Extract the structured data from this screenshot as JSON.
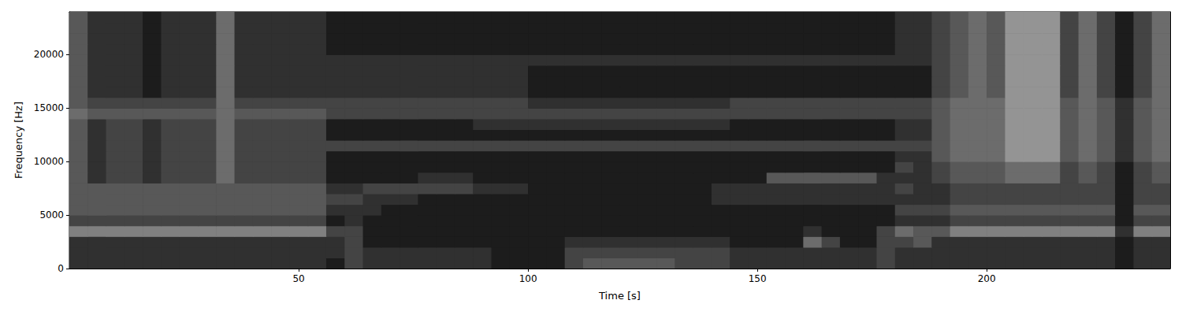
{
  "chart_data": {
    "type": "heatmap",
    "x_label": "Time [s]",
    "y_label": "Frequency [Hz]",
    "xlim": [
      0,
      240
    ],
    "ylim": [
      0,
      24000
    ],
    "xticks": [
      50,
      100,
      150,
      200
    ],
    "yticks": [
      0,
      5000,
      10000,
      15000,
      20000
    ],
    "grid": false,
    "zlim": [
      0,
      10
    ],
    "x": [
      0,
      4,
      8,
      12,
      16,
      20,
      24,
      28,
      32,
      36,
      40,
      44,
      48,
      52,
      56,
      60,
      64,
      68,
      72,
      76,
      80,
      84,
      88,
      92,
      96,
      100,
      104,
      108,
      112,
      116,
      120,
      124,
      128,
      132,
      136,
      140,
      144,
      148,
      152,
      156,
      160,
      164,
      168,
      172,
      176,
      180,
      184,
      188,
      192,
      196,
      200,
      204,
      208,
      212,
      216,
      220,
      224,
      228,
      232,
      236,
      240
    ],
    "y": [
      0,
      1000,
      2000,
      3000,
      4000,
      5000,
      6000,
      7000,
      8000,
      9000,
      10000,
      11000,
      12000,
      13000,
      14000,
      15000,
      16000,
      17000,
      18000,
      19000,
      20000,
      21000,
      22000,
      23000,
      24000
    ],
    "z": [
      [
        2,
        2,
        2,
        2,
        2,
        2,
        2,
        2,
        2,
        2,
        2,
        2,
        2,
        2,
        1,
        3,
        2,
        2,
        2,
        2,
        2,
        2,
        2,
        1,
        1,
        1,
        1,
        3,
        4,
        4,
        4,
        4,
        4,
        3,
        3,
        3,
        2,
        2,
        2,
        2,
        2,
        2,
        2,
        2,
        3,
        2,
        2,
        2,
        2,
        2,
        2,
        2,
        2,
        2,
        2,
        2,
        2,
        1,
        2,
        2
      ],
      [
        2,
        2,
        2,
        2,
        2,
        2,
        2,
        2,
        2,
        2,
        2,
        2,
        2,
        2,
        2,
        3,
        2,
        2,
        2,
        2,
        2,
        2,
        2,
        1,
        1,
        1,
        1,
        3,
        3,
        3,
        3,
        3,
        3,
        3,
        3,
        3,
        2,
        2,
        2,
        2,
        2,
        2,
        2,
        2,
        3,
        2,
        2,
        2,
        2,
        2,
        2,
        2,
        2,
        2,
        2,
        2,
        2,
        1,
        2,
        2
      ],
      [
        2,
        2,
        2,
        2,
        2,
        2,
        2,
        2,
        2,
        2,
        2,
        2,
        2,
        2,
        2,
        3,
        1,
        1,
        1,
        1,
        1,
        1,
        1,
        1,
        1,
        1,
        1,
        2,
        2,
        2,
        2,
        2,
        2,
        2,
        2,
        2,
        1,
        1,
        1,
        1,
        5,
        3,
        1,
        1,
        3,
        3,
        4,
        2,
        2,
        2,
        2,
        2,
        2,
        2,
        2,
        2,
        2,
        1,
        2,
        2
      ],
      [
        6,
        6,
        6,
        6,
        6,
        6,
        6,
        6,
        6,
        6,
        6,
        6,
        6,
        6,
        3,
        3,
        1,
        1,
        1,
        1,
        1,
        1,
        1,
        1,
        1,
        1,
        1,
        1,
        1,
        1,
        1,
        1,
        1,
        1,
        1,
        1,
        1,
        1,
        1,
        1,
        2,
        1,
        1,
        1,
        3,
        5,
        4,
        4,
        6,
        6,
        6,
        6,
        6,
        6,
        6,
        6,
        6,
        2,
        6,
        6
      ],
      [
        3,
        3,
        3,
        3,
        3,
        3,
        3,
        3,
        3,
        3,
        3,
        3,
        3,
        3,
        1,
        2,
        1,
        1,
        1,
        1,
        1,
        1,
        1,
        1,
        1,
        1,
        1,
        1,
        1,
        1,
        1,
        1,
        1,
        1,
        1,
        1,
        1,
        1,
        1,
        1,
        1,
        1,
        1,
        1,
        1,
        2,
        2,
        2,
        3,
        3,
        3,
        3,
        3,
        3,
        3,
        3,
        3,
        1,
        3,
        3
      ],
      [
        4,
        4,
        4,
        4,
        4,
        4,
        4,
        4,
        4,
        4,
        4,
        4,
        4,
        4,
        2,
        2,
        2,
        1,
        1,
        1,
        1,
        1,
        1,
        1,
        1,
        1,
        1,
        1,
        1,
        1,
        1,
        1,
        1,
        1,
        1,
        1,
        1,
        1,
        1,
        1,
        1,
        1,
        1,
        1,
        1,
        3,
        3,
        3,
        4,
        4,
        4,
        4,
        4,
        4,
        4,
        4,
        4,
        1,
        4,
        4
      ],
      [
        4,
        4,
        4,
        4,
        4,
        4,
        4,
        4,
        4,
        4,
        4,
        4,
        4,
        4,
        3,
        3,
        2,
        2,
        2,
        1,
        1,
        1,
        1,
        1,
        1,
        1,
        1,
        1,
        1,
        1,
        1,
        1,
        1,
        1,
        1,
        2,
        2,
        2,
        2,
        2,
        2,
        2,
        2,
        2,
        2,
        2,
        2,
        2,
        3,
        3,
        3,
        3,
        3,
        3,
        3,
        3,
        3,
        1,
        3,
        3
      ],
      [
        4,
        4,
        4,
        4,
        4,
        4,
        4,
        4,
        4,
        4,
        4,
        4,
        4,
        4,
        2,
        2,
        3,
        3,
        3,
        3,
        3,
        3,
        2,
        2,
        2,
        1,
        1,
        1,
        1,
        1,
        1,
        1,
        1,
        1,
        1,
        2,
        2,
        2,
        2,
        2,
        2,
        2,
        2,
        2,
        2,
        3,
        2,
        2,
        3,
        3,
        3,
        3,
        3,
        3,
        3,
        3,
        3,
        1,
        3,
        3
      ],
      [
        4,
        2,
        3,
        3,
        2,
        3,
        3,
        3,
        5,
        3,
        3,
        3,
        3,
        3,
        1,
        1,
        1,
        1,
        1,
        2,
        2,
        2,
        1,
        1,
        1,
        1,
        1,
        1,
        1,
        1,
        1,
        1,
        1,
        1,
        1,
        1,
        1,
        1,
        4,
        4,
        4,
        4,
        4,
        4,
        2,
        2,
        2,
        3,
        4,
        4,
        4,
        5,
        5,
        5,
        3,
        4,
        3,
        1,
        3,
        4
      ],
      [
        4,
        2,
        3,
        3,
        2,
        3,
        3,
        3,
        5,
        3,
        3,
        3,
        3,
        3,
        1,
        1,
        1,
        1,
        1,
        1,
        1,
        1,
        1,
        1,
        1,
        1,
        1,
        1,
        1,
        1,
        1,
        1,
        1,
        1,
        1,
        1,
        1,
        1,
        1,
        1,
        1,
        1,
        1,
        1,
        1,
        3,
        2,
        3,
        4,
        4,
        4,
        5,
        5,
        5,
        3,
        4,
        3,
        1,
        3,
        4
      ],
      [
        4,
        2,
        3,
        3,
        2,
        3,
        3,
        3,
        5,
        3,
        3,
        3,
        3,
        3,
        1,
        1,
        1,
        1,
        1,
        1,
        1,
        1,
        1,
        1,
        1,
        1,
        1,
        1,
        1,
        1,
        1,
        1,
        1,
        1,
        1,
        1,
        1,
        1,
        1,
        1,
        1,
        1,
        1,
        1,
        1,
        2,
        2,
        4,
        5,
        5,
        5,
        7,
        7,
        7,
        4,
        5,
        4,
        2,
        4,
        5
      ],
      [
        4,
        2,
        3,
        3,
        2,
        3,
        3,
        3,
        5,
        3,
        3,
        3,
        3,
        3,
        3,
        3,
        3,
        3,
        3,
        3,
        3,
        3,
        3,
        3,
        3,
        3,
        3,
        3,
        3,
        3,
        3,
        3,
        3,
        3,
        3,
        3,
        3,
        3,
        3,
        3,
        3,
        3,
        3,
        3,
        3,
        3,
        3,
        4,
        5,
        5,
        5,
        7,
        7,
        7,
        4,
        5,
        4,
        2,
        4,
        5
      ],
      [
        4,
        2,
        3,
        3,
        2,
        3,
        3,
        3,
        5,
        3,
        3,
        3,
        3,
        3,
        1,
        1,
        1,
        1,
        1,
        1,
        1,
        1,
        1,
        1,
        1,
        1,
        1,
        1,
        1,
        1,
        1,
        1,
        1,
        1,
        1,
        1,
        1,
        1,
        1,
        1,
        1,
        1,
        1,
        1,
        1,
        2,
        2,
        4,
        5,
        5,
        5,
        7,
        7,
        7,
        4,
        5,
        4,
        2,
        4,
        5
      ],
      [
        4,
        2,
        3,
        3,
        2,
        3,
        3,
        3,
        5,
        3,
        3,
        3,
        3,
        3,
        1,
        1,
        1,
        1,
        1,
        1,
        1,
        1,
        2,
        2,
        2,
        2,
        2,
        2,
        2,
        2,
        2,
        2,
        2,
        2,
        2,
        2,
        1,
        1,
        1,
        1,
        1,
        1,
        1,
        1,
        1,
        2,
        2,
        4,
        5,
        5,
        5,
        7,
        7,
        7,
        4,
        5,
        4,
        2,
        4,
        5
      ],
      [
        5,
        4,
        4,
        4,
        4,
        4,
        4,
        4,
        5,
        4,
        4,
        4,
        4,
        4,
        3,
        3,
        3,
        3,
        3,
        3,
        3,
        3,
        3,
        3,
        3,
        3,
        3,
        3,
        3,
        3,
        3,
        3,
        3,
        3,
        3,
        3,
        3,
        3,
        3,
        3,
        3,
        3,
        3,
        3,
        3,
        3,
        3,
        4,
        5,
        5,
        5,
        7,
        7,
        7,
        4,
        5,
        4,
        2,
        4,
        5
      ],
      [
        4,
        3,
        3,
        3,
        3,
        3,
        3,
        3,
        5,
        3,
        3,
        3,
        3,
        3,
        3,
        3,
        3,
        3,
        3,
        3,
        3,
        3,
        3,
        3,
        3,
        2,
        2,
        2,
        2,
        2,
        2,
        2,
        2,
        2,
        2,
        2,
        3,
        3,
        3,
        3,
        3,
        3,
        3,
        3,
        3,
        3,
        3,
        4,
        5,
        5,
        5,
        7,
        7,
        7,
        4,
        5,
        4,
        2,
        4,
        5
      ],
      [
        4,
        2,
        2,
        2,
        1,
        2,
        2,
        2,
        5,
        2,
        2,
        2,
        2,
        2,
        2,
        2,
        2,
        2,
        2,
        2,
        2,
        2,
        2,
        2,
        2,
        1,
        1,
        1,
        1,
        1,
        1,
        1,
        1,
        1,
        1,
        1,
        1,
        1,
        1,
        1,
        1,
        1,
        1,
        1,
        1,
        1,
        1,
        3,
        4,
        5,
        4,
        7,
        7,
        7,
        3,
        5,
        3,
        1,
        3,
        5
      ],
      [
        4,
        2,
        2,
        2,
        1,
        2,
        2,
        2,
        5,
        2,
        2,
        2,
        2,
        2,
        2,
        2,
        2,
        2,
        2,
        2,
        2,
        2,
        2,
        2,
        2,
        1,
        1,
        1,
        1,
        1,
        1,
        1,
        1,
        1,
        1,
        1,
        1,
        1,
        1,
        1,
        1,
        1,
        1,
        1,
        1,
        1,
        1,
        3,
        4,
        5,
        4,
        7,
        7,
        7,
        3,
        5,
        3,
        1,
        3,
        5
      ],
      [
        4,
        2,
        2,
        2,
        1,
        2,
        2,
        2,
        5,
        2,
        2,
        2,
        2,
        2,
        2,
        2,
        2,
        2,
        2,
        2,
        2,
        2,
        2,
        2,
        2,
        1,
        1,
        1,
        1,
        1,
        1,
        1,
        1,
        1,
        1,
        1,
        1,
        1,
        1,
        1,
        1,
        1,
        1,
        1,
        1,
        1,
        1,
        3,
        4,
        5,
        4,
        7,
        7,
        7,
        3,
        5,
        3,
        1,
        3,
        5
      ],
      [
        4,
        2,
        2,
        2,
        1,
        2,
        2,
        2,
        5,
        2,
        2,
        2,
        2,
        2,
        2,
        2,
        2,
        2,
        2,
        2,
        2,
        2,
        2,
        2,
        2,
        2,
        2,
        2,
        2,
        2,
        2,
        2,
        2,
        2,
        2,
        2,
        2,
        2,
        2,
        2,
        2,
        2,
        2,
        2,
        2,
        2,
        2,
        3,
        4,
        5,
        4,
        7,
        7,
        7,
        3,
        5,
        3,
        1,
        3,
        5
      ],
      [
        4,
        2,
        2,
        2,
        1,
        2,
        2,
        2,
        5,
        2,
        2,
        2,
        2,
        2,
        1,
        1,
        1,
        1,
        1,
        1,
        1,
        1,
        1,
        1,
        1,
        1,
        1,
        1,
        1,
        1,
        1,
        1,
        1,
        1,
        1,
        1,
        1,
        1,
        1,
        1,
        1,
        1,
        1,
        1,
        1,
        2,
        2,
        3,
        4,
        5,
        4,
        7,
        7,
        7,
        3,
        5,
        3,
        1,
        3,
        5
      ],
      [
        4,
        2,
        2,
        2,
        1,
        2,
        2,
        2,
        5,
        2,
        2,
        2,
        2,
        2,
        1,
        1,
        1,
        1,
        1,
        1,
        1,
        1,
        1,
        1,
        1,
        1,
        1,
        1,
        1,
        1,
        1,
        1,
        1,
        1,
        1,
        1,
        1,
        1,
        1,
        1,
        1,
        1,
        1,
        1,
        1,
        2,
        2,
        3,
        4,
        5,
        4,
        7,
        7,
        7,
        3,
        5,
        3,
        1,
        3,
        5
      ],
      [
        4,
        2,
        2,
        2,
        1,
        2,
        2,
        2,
        5,
        2,
        2,
        2,
        2,
        2,
        1,
        1,
        1,
        1,
        1,
        1,
        1,
        1,
        1,
        1,
        1,
        1,
        1,
        1,
        1,
        1,
        1,
        1,
        1,
        1,
        1,
        1,
        1,
        1,
        1,
        1,
        1,
        1,
        1,
        1,
        1,
        2,
        2,
        3,
        4,
        5,
        4,
        7,
        7,
        7,
        3,
        5,
        3,
        1,
        3,
        5
      ],
      [
        4,
        2,
        2,
        2,
        1,
        2,
        2,
        2,
        5,
        2,
        2,
        2,
        2,
        2,
        1,
        1,
        1,
        1,
        1,
        1,
        1,
        1,
        1,
        1,
        1,
        1,
        1,
        1,
        1,
        1,
        1,
        1,
        1,
        1,
        1,
        1,
        1,
        1,
        1,
        1,
        1,
        1,
        1,
        1,
        1,
        2,
        2,
        3,
        4,
        5,
        4,
        7,
        7,
        7,
        3,
        5,
        3,
        1,
        3,
        5
      ]
    ]
  }
}
